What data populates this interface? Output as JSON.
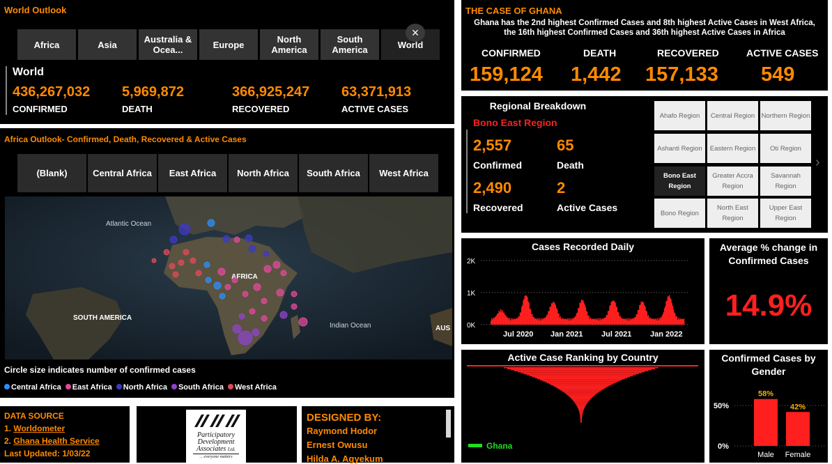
{
  "world_outlook": {
    "title": "World Outlook",
    "continents": [
      "Africa",
      "Asia",
      "Australia & Ocea...",
      "Europe",
      "North America",
      "South America",
      "World"
    ],
    "close_glyph": "×",
    "region_label": "World",
    "confirmed": "436,267,032",
    "death": "5,969,872",
    "recovered": "366,925,247",
    "active": "63,371,913",
    "confirmed_label": "CONFIRMED",
    "death_label": "DEATH",
    "recovered_label": "RECOVERED",
    "active_label": "ACTIVE CASES"
  },
  "africa_outlook": {
    "title": "Africa Outlook- Confirmed, Death, Recovered & Active Cases",
    "regions": [
      "(Blank)",
      "Central Africa",
      "East Africa",
      "North Africa",
      "South Africa",
      "West Africa"
    ],
    "map_labels": {
      "atlantic": "Atlantic Ocean",
      "africa": "AFRICA",
      "south_america": "SOUTH AMERICA",
      "indian": "Indian Ocean",
      "aus": "AUS"
    },
    "circle_note": "Circle size indicates number of confirmed cases",
    "legend": [
      {
        "name": "Central Africa",
        "color": "#2f8ef5"
      },
      {
        "name": "East Africa",
        "color": "#e04a9a"
      },
      {
        "name": "North Africa",
        "color": "#3d3ac2"
      },
      {
        "name": "South Africa",
        "color": "#8e44c9"
      },
      {
        "name": "West Africa",
        "color": "#e04a5a"
      }
    ]
  },
  "ghana_case": {
    "title": "THE CASE OF GHANA",
    "description": "Ghana has the 2nd highest  Confirmed Cases and 8th highest Active Cases in West Africa, the 16th highest Confirmed Cases and 36th highest Active Cases in Africa",
    "confirmed_label": "CONFIRMED",
    "death_label": "DEATH",
    "recovered_label": "RECOVERED",
    "active_label": "ACTIVE CASES",
    "confirmed": "159,124",
    "death": "1,442",
    "recovered": "157,133",
    "active": "549"
  },
  "regional": {
    "title": "Regional Breakdown",
    "selected_region": "Bono East Region",
    "confirmed": "2,557",
    "death": "65",
    "recovered": "2,490",
    "active": "2",
    "confirmed_label": "Confirmed",
    "death_label": "Death",
    "recovered_label": "Recovered",
    "active_label": "Active Cases",
    "buttons": [
      "Ahafo Region",
      "Central Region",
      "Northern Region",
      "Ashanti Region",
      "Eastern Region",
      "Oti Region",
      "Bono East Region",
      "Greater Accra Region",
      "Savannah Region",
      "Bono Region",
      "North East Region",
      "Upper East Region"
    ],
    "next_glyph": "›"
  },
  "chart_data": [
    {
      "type": "bar",
      "title": "Cases Recorded Daily",
      "y_ticks": [
        "2K",
        "1K",
        "0K"
      ],
      "x_ticks": [
        "Jul 2020",
        "Jan 2021",
        "Jul 2021",
        "Jan 2022"
      ],
      "ylim": [
        0,
        2000
      ],
      "color": "#ff1f1f"
    },
    {
      "type": "bar",
      "title": "Active Case Ranking by Country",
      "legend": "Ghana",
      "highlight_color": "#22dd22",
      "color": "#ff1f1f"
    },
    {
      "type": "bar",
      "title": "Confirmed Cases by Gender",
      "categories": [
        "Male",
        "Female"
      ],
      "values": [
        58,
        42
      ],
      "data_labels": [
        "58%",
        "42%"
      ],
      "y_ticks": [
        "50%",
        "0%"
      ],
      "ylim": [
        0,
        65
      ],
      "color": "#ff1f1f"
    }
  ],
  "avg_change": {
    "title": "Average % change in Confirmed Cases",
    "value": "14.9%"
  },
  "data_source": {
    "title": "DATA SOURCE",
    "item1_num": "1. ",
    "item1": "Worldometer",
    "item2_num": "2. ",
    "item2": "Ghana Health Service",
    "updated": "Last Updated: 1/03/22"
  },
  "logo": {
    "line1": "Participatory",
    "line2": "Development",
    "line3": "Associates",
    "suffix": "Ltd.",
    "tagline": "... everyone matters"
  },
  "designed_by": {
    "title": "DESIGNED BY:",
    "names": [
      "Raymond Hodor",
      "Ernest Owusu",
      "Hilda A. Agyekum"
    ]
  }
}
